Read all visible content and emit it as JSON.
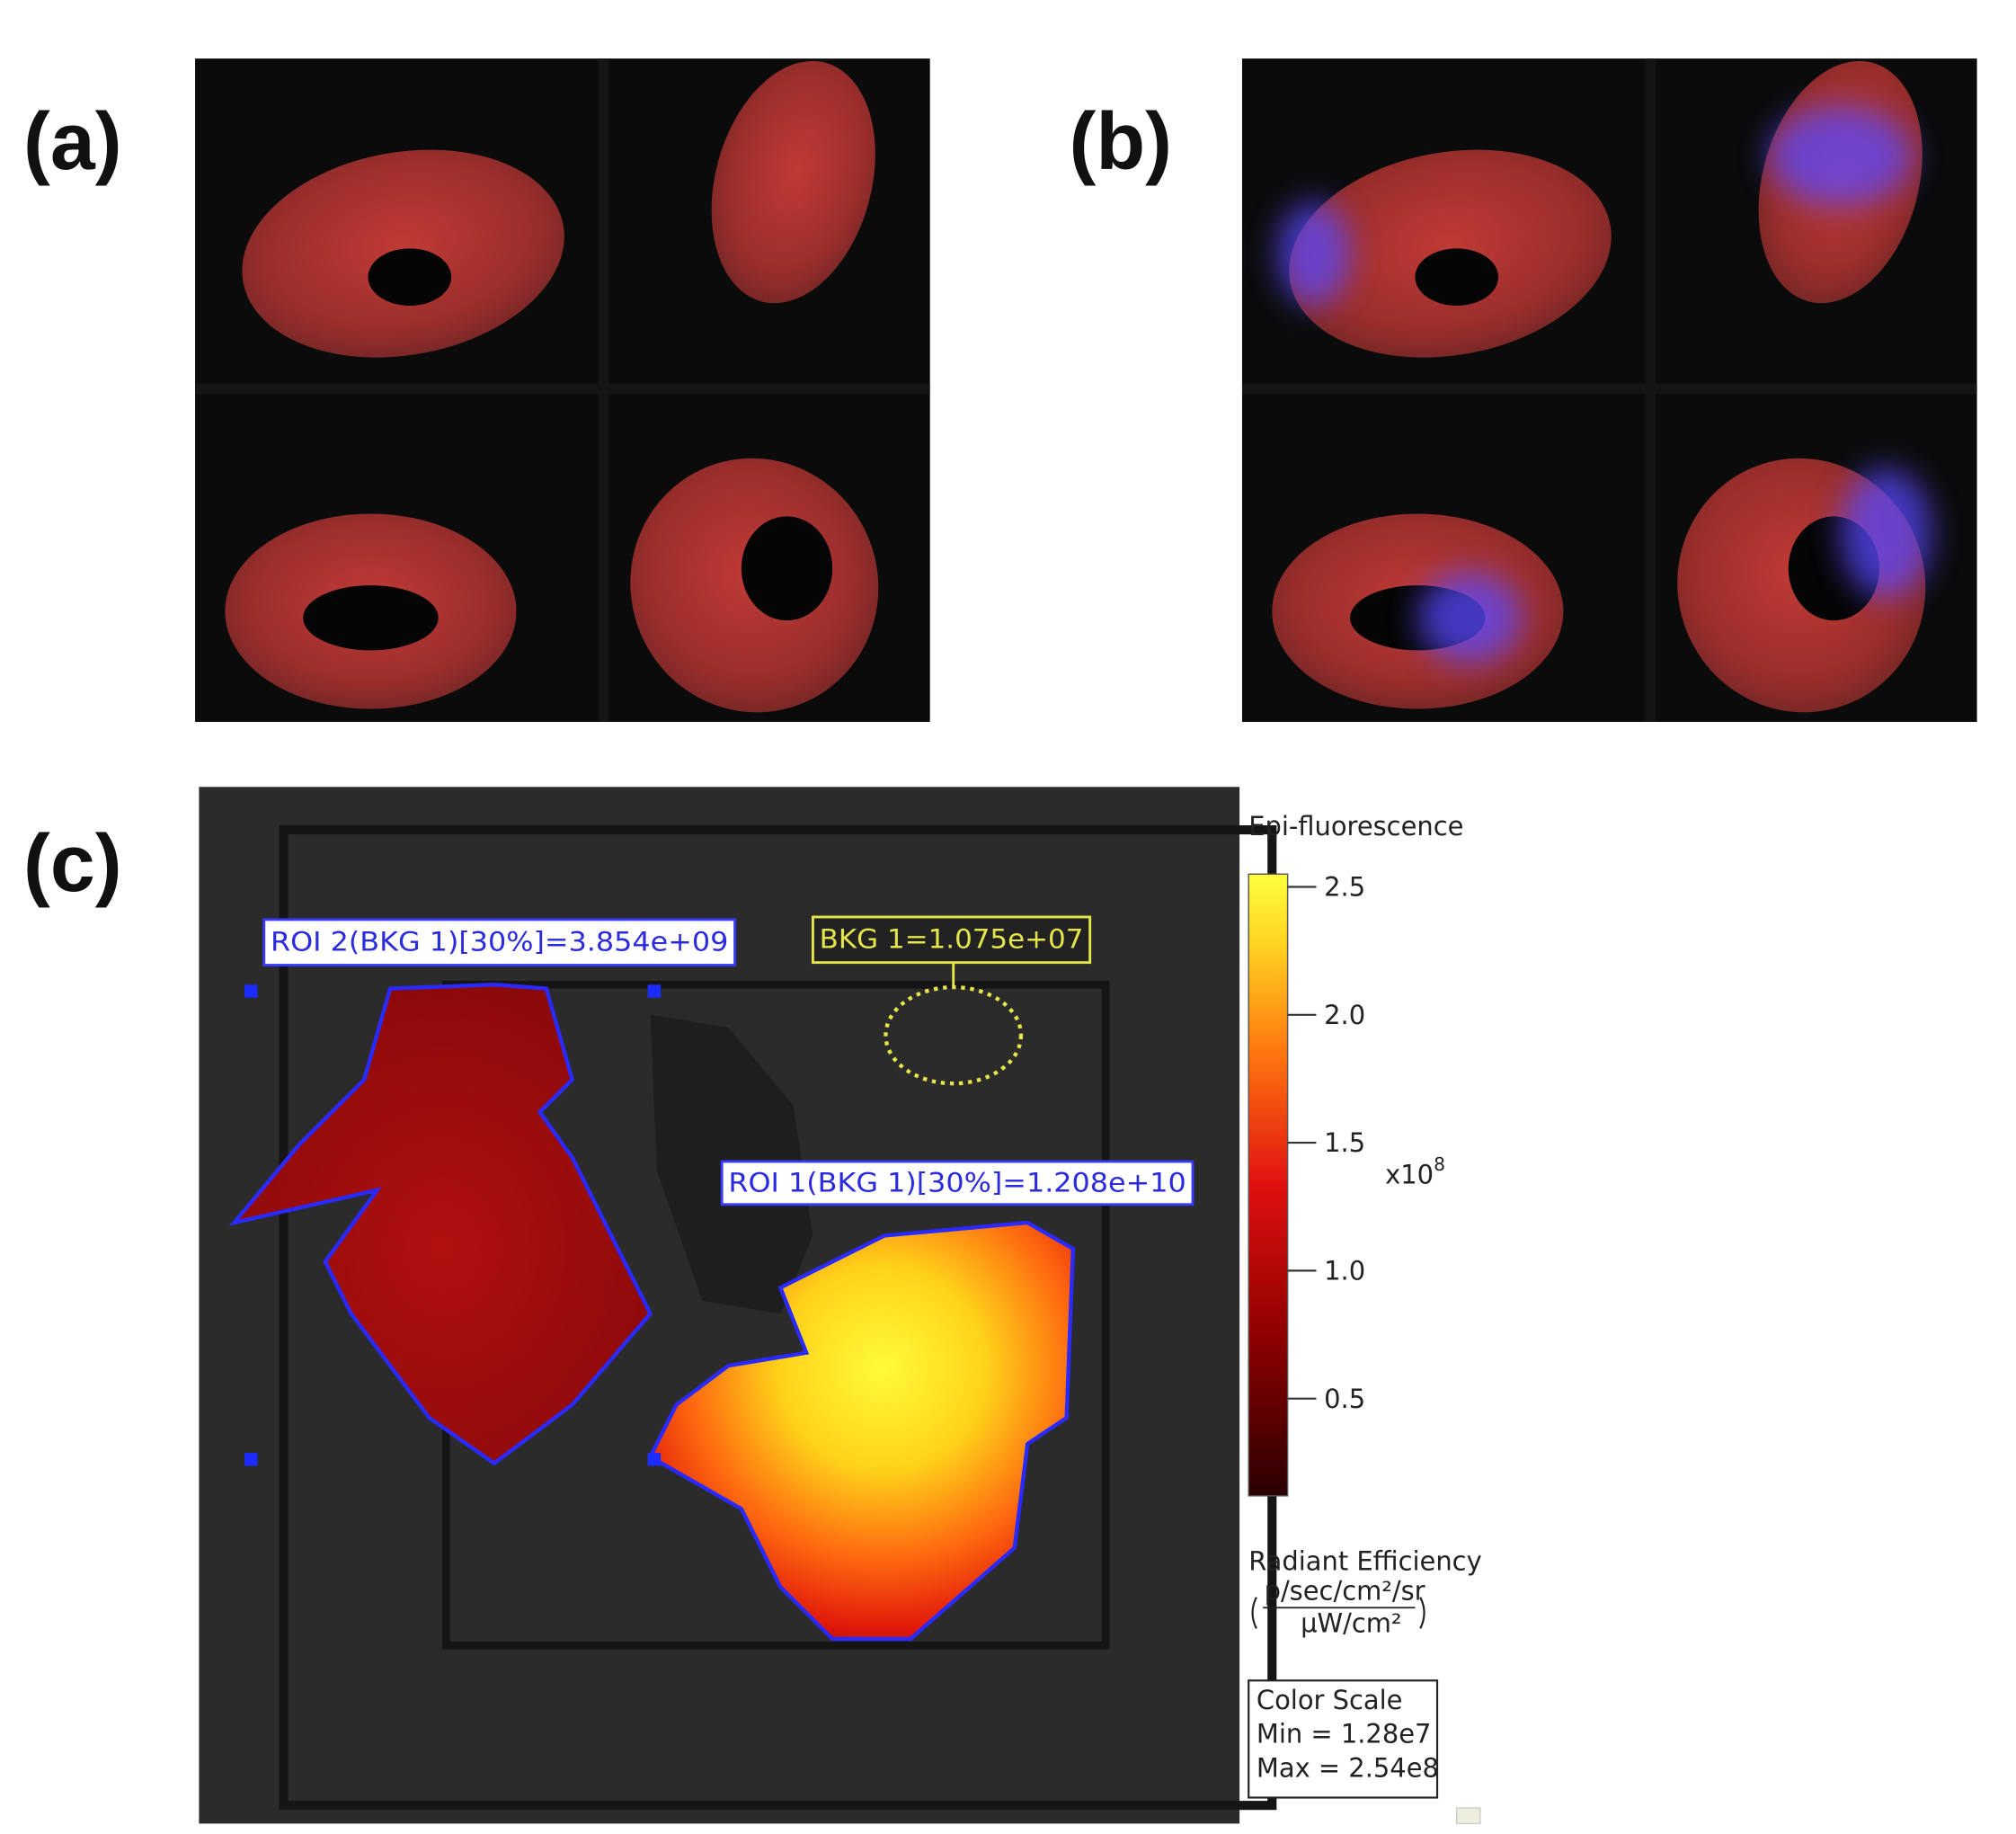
{
  "panels": {
    "a": {
      "label": "(a)"
    },
    "b": {
      "label": "(b)"
    },
    "c": {
      "label": "(c)",
      "roi_labels": [
        "ROI 2(BKG 1)[30%]=3.854e+09",
        "ROI 1(BKG 1)[30%]=1.208e+10"
      ],
      "background_label": "BKG 1=1.075e+07"
    }
  },
  "colorbar": {
    "title": "Epi-fluorescence",
    "ylim": [
      0.12,
      2.55
    ],
    "yticks": [
      0.5,
      {
        "value": 1,
        "label": "1.0"
      },
      1.5,
      {
        "value": 2,
        "label": "2.0"
      },
      2.5
    ],
    "multiplier": {
      "base": "x10",
      "power": "8"
    },
    "unit_title": "Radiant Efficiency",
    "unit_numerator": "p/sec/cm²/sr",
    "unit_denominator": "µW/cm²",
    "color_scale": {
      "title": "Color Scale",
      "min": "Min = 1.28e7",
      "max": "Max = 2.54e8"
    }
  }
}
